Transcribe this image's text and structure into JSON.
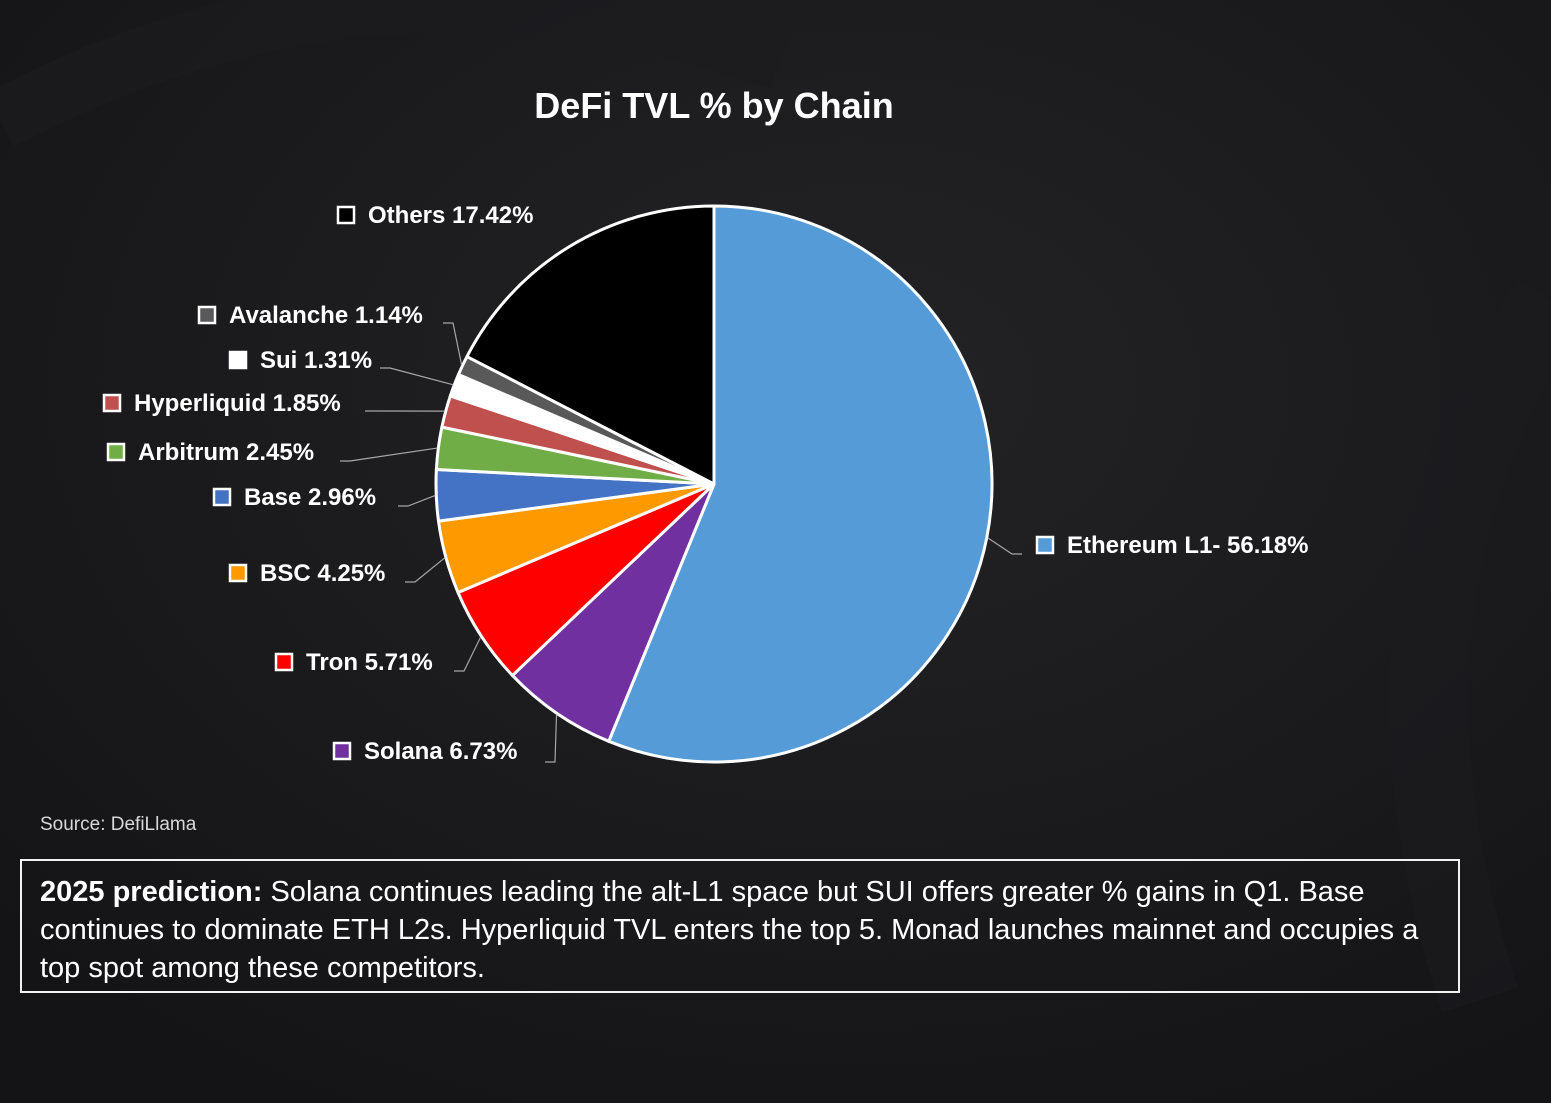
{
  "chart_data": {
    "type": "pie",
    "title": "DeFi TVL % by Chain",
    "start": "12 o'clock, clockwise",
    "slices": [
      {
        "name": "Ethereum L1",
        "value": 56.18,
        "label": "Ethereum L1- 56.18%",
        "color": "#559bd7"
      },
      {
        "name": "Solana",
        "value": 6.73,
        "label": "Solana 6.73%",
        "color": "#7030a0"
      },
      {
        "name": "Tron",
        "value": 5.71,
        "label": "Tron 5.71%",
        "color": "#ff0000"
      },
      {
        "name": "BSC",
        "value": 4.25,
        "label": "BSC 4.25%",
        "color": "#ff9900"
      },
      {
        "name": "Base",
        "value": 2.96,
        "label": "Base 2.96%",
        "color": "#4472c4"
      },
      {
        "name": "Arbitrum",
        "value": 2.45,
        "label": "Arbitrum 2.45%",
        "color": "#70ad47"
      },
      {
        "name": "Hyperliquid",
        "value": 1.85,
        "label": "Hyperliquid 1.85%",
        "color": "#c0504d"
      },
      {
        "name": "Sui",
        "value": 1.31,
        "label": "Sui 1.31%",
        "color": "#ffffff"
      },
      {
        "name": "Avalanche",
        "value": 1.14,
        "label": "Avalanche 1.14%",
        "color": "#595959"
      },
      {
        "name": "Others",
        "value": 17.42,
        "label": "Others 17.42%",
        "color": "#000000"
      }
    ]
  },
  "source": "Source: DefiLlama",
  "prediction": {
    "heading": "2025 prediction:",
    "text": "Solana continues leading the alt-L1 space but SUI offers greater % gains in Q1. Base continues to dominate ETH L2s. Hyperliquid TVL enters the top 5. Monad launches mainnet and occupies a top spot among these competitors."
  }
}
